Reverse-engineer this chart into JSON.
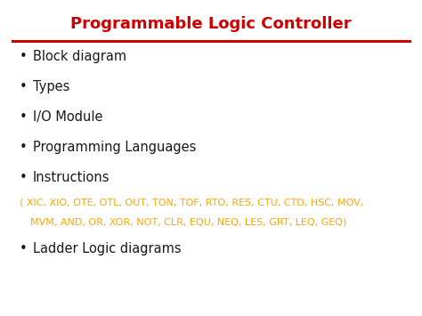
{
  "title": "Programmable Logic Controller",
  "title_color": "#CC0000",
  "title_fontsize": 13,
  "line_color": "#CC0000",
  "bg_color": "#FFFFFF",
  "bullet_items": [
    "Block diagram",
    "Types",
    "I/O Module",
    "Programming Languages",
    "Instructions"
  ],
  "bullet_color": "#1a1a1a",
  "bullet_fontsize": 10.5,
  "sub_text_line1": "( XIC, XIO, OTE, OTL, OUT, TON, TOF, RTO, RES, CTU, CTD, HSC, MOV,",
  "sub_text_line2": "  MVM, AND, OR, XOR, NOT, CLR, EQU, NEQ, LES, GRT, LEQ, GEQ)",
  "sub_text_color": "#FFA500",
  "sub_text_fontsize": 8.0,
  "last_bullet": "Ladder Logic diagrams",
  "last_bullet_color": "#1a1a1a",
  "last_bullet_fontsize": 10.5,
  "fig_width": 4.74,
  "fig_height": 3.55,
  "dpi": 100
}
